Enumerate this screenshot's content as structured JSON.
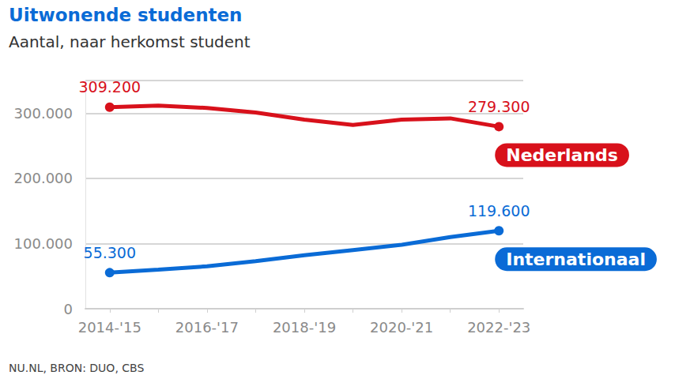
{
  "chart_data": {
    "type": "line",
    "title": "Uitwonende studenten",
    "subtitle": "Aantal, naar herkomst student",
    "source": "NU.NL, BRON: DUO, CBS",
    "categories": [
      "2014-'15",
      null,
      "2016-'17",
      null,
      "2018-'19",
      null,
      "2020-'21",
      null,
      "2022-'23"
    ],
    "series": [
      {
        "name": "Nederlands",
        "color": "#d8111b",
        "values": [
          309200,
          311500,
          308000,
          301000,
          290000,
          282000,
          290000,
          292000,
          279300
        ],
        "value_labels": [
          "309.200",
          null,
          null,
          null,
          null,
          null,
          null,
          null,
          "279.300"
        ]
      },
      {
        "name": "Internationaal",
        "color": "#0a6bd6",
        "values": [
          55300,
          60000,
          65000,
          73000,
          82000,
          90000,
          98000,
          110000,
          119600
        ],
        "value_labels": [
          "55.300",
          null,
          null,
          null,
          null,
          null,
          null,
          null,
          "119.600"
        ]
      }
    ],
    "ylim": [
      0,
      350000
    ],
    "yticks": [
      0,
      {
        "value": 100000,
        "label": "100.000"
      },
      {
        "value": 200000,
        "label": "200.000"
      },
      {
        "value": 300000,
        "label": "300.000"
      }
    ],
    "grid": true,
    "data_labels": true
  }
}
